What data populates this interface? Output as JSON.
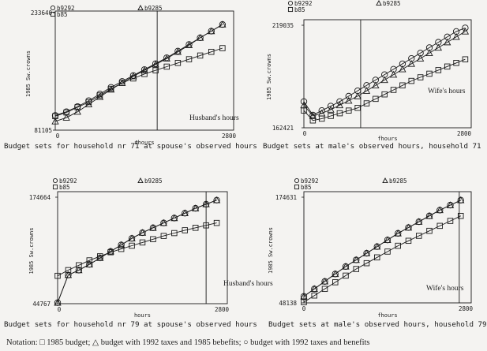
{
  "legend": {
    "b9292": "b9292",
    "b85": "b85",
    "b9285": "b9285"
  },
  "notation": "Notation: □ 1985 budget; △ budget with 1992 taxes and 1985 bebefits; ○ budget with 1992 taxes and benefits",
  "colors": {
    "ink": "#1a1a1a",
    "background": "#f4f3f1"
  },
  "chart_data": [
    {
      "type": "line",
      "caption": "Budget sets for household nr 71 at spouse's observed hours",
      "annotation": "Husband's hours",
      "ylabel": "1985 Sw.crowns",
      "xlabel": "#hours",
      "ylim": [
        81105,
        233640
      ],
      "xlim": [
        0,
        2800
      ],
      "yticks": [
        "233640",
        "81105"
      ],
      "xticks": [
        "0",
        "2800"
      ],
      "observed_hours": 1600,
      "x": [
        0,
        175,
        350,
        525,
        700,
        875,
        1050,
        1225,
        1400,
        1575,
        1750,
        1925,
        2100,
        2275,
        2450,
        2625
      ],
      "series": [
        {
          "name": "b85",
          "marker": "square",
          "values": [
            100000,
            105000,
            112000,
            119000,
            128000,
            137000,
            145000,
            151000,
            157000,
            162000,
            167000,
            172000,
            177000,
            182000,
            187000,
            192000
          ]
        },
        {
          "name": "b9285",
          "marker": "triangle",
          "values": [
            93000,
            98000,
            106000,
            116000,
            126000,
            136000,
            145000,
            154000,
            162000,
            170000,
            178000,
            187000,
            196000,
            206000,
            215000,
            224000
          ]
        },
        {
          "name": "b9292",
          "marker": "circle",
          "values": [
            101000,
            106000,
            113000,
            121000,
            130000,
            139000,
            147000,
            155000,
            163000,
            171000,
            179000,
            188000,
            197000,
            206000,
            215000,
            224000
          ]
        }
      ]
    },
    {
      "type": "line",
      "caption": "Budget sets at male's observed hours, household 71",
      "annotation": "Wife's hours",
      "ylabel": "1985 Sw.crowns",
      "xlabel": "fhours",
      "ylim": [
        162421,
        219035
      ],
      "xlim": [
        0,
        2800
      ],
      "yticks": [
        "219035",
        "162421"
      ],
      "xticks": [
        "0",
        "2800"
      ],
      "observed_hours": 950,
      "x": [
        0,
        150,
        300,
        450,
        600,
        750,
        900,
        1050,
        1200,
        1350,
        1500,
        1650,
        1800,
        1950,
        2100,
        2250,
        2400,
        2550,
        2700
      ],
      "series": [
        {
          "name": "b85",
          "marker": "square",
          "values": [
            172000,
            166500,
            167500,
            169000,
            170500,
            172000,
            173500,
            176000,
            178500,
            181000,
            183500,
            186000,
            188500,
            190500,
            192500,
            194500,
            196500,
            198500,
            200500
          ]
        },
        {
          "name": "b9285",
          "marker": "triangle",
          "values": [
            175000,
            169000,
            170500,
            172500,
            175000,
            177500,
            180000,
            183000,
            186000,
            189000,
            192000,
            195000,
            198000,
            201000,
            204000,
            207000,
            210000,
            213000,
            216000
          ]
        },
        {
          "name": "b9292",
          "marker": "circle",
          "values": [
            177000,
            169500,
            172000,
            174500,
            177000,
            180000,
            183000,
            186000,
            189000,
            192000,
            195000,
            198000,
            201000,
            204000,
            207000,
            210000,
            213000,
            216000,
            218000
          ]
        }
      ]
    },
    {
      "type": "line",
      "caption": "Budget sets for household nr 79 at spouse's observed hours",
      "annotation": "Husband's hours",
      "ylabel": "1985 Sw.crowns",
      "xlabel": "hours",
      "ylim": [
        44767,
        174664
      ],
      "xlim": [
        0,
        2800
      ],
      "yticks": [
        "174664",
        "44767"
      ],
      "xticks": [
        "0",
        "2800"
      ],
      "observed_hours": 2450,
      "x": [
        0,
        175,
        350,
        525,
        700,
        875,
        1050,
        1225,
        1400,
        1575,
        1750,
        1925,
        2100,
        2275,
        2450,
        2625
      ],
      "series": [
        {
          "name": "b85",
          "marker": "square",
          "values": [
            79000,
            86000,
            92000,
            98000,
            103000,
            108000,
            112000,
            116000,
            120000,
            124000,
            128000,
            131500,
            135000,
            138000,
            141000,
            144000
          ]
        },
        {
          "name": "b9285",
          "marker": "triangle",
          "values": [
            46000,
            80000,
            86000,
            93000,
            101000,
            109000,
            117000,
            125000,
            132000,
            138000,
            144000,
            150000,
            156000,
            162000,
            167000,
            172000
          ]
        },
        {
          "name": "b9292",
          "marker": "circle",
          "values": [
            46000,
            80000,
            86000,
            93000,
            101000,
            109000,
            117000,
            125000,
            132000,
            138000,
            144000,
            150000,
            156000,
            162000,
            167000,
            172000
          ]
        }
      ]
    },
    {
      "type": "line",
      "caption": "Budget sets at male's observed hours, household 79",
      "annotation": "Wife's hours",
      "ylabel": "1985 Sw.crowns",
      "xlabel": "fhours",
      "ylim": [
        48138,
        174631
      ],
      "xlim": [
        0,
        2800
      ],
      "yticks": [
        "174631",
        "48138"
      ],
      "xticks": [
        "0",
        "2800"
      ],
      "observed_hours": 2600,
      "x": [
        0,
        175,
        350,
        525,
        700,
        875,
        1050,
        1225,
        1400,
        1575,
        1750,
        1925,
        2100,
        2275,
        2450,
        2625
      ],
      "series": [
        {
          "name": "b85",
          "marker": "square",
          "values": [
            49000,
            57000,
            65000,
            73000,
            81000,
            89000,
            96000,
            103000,
            110000,
            117000,
            123000,
            129000,
            135000,
            141000,
            147000,
            153000
          ]
        },
        {
          "name": "b9285",
          "marker": "triangle",
          "values": [
            56000,
            65000,
            74000,
            83000,
            92000,
            100000,
            108000,
            116000,
            124000,
            132000,
            139000,
            146000,
            153000,
            160000,
            166000,
            172000
          ]
        },
        {
          "name": "b9292",
          "marker": "circle",
          "values": [
            56000,
            65000,
            74000,
            83000,
            92000,
            100000,
            108000,
            116000,
            124000,
            132000,
            139000,
            146000,
            153000,
            160000,
            166000,
            172000
          ]
        }
      ]
    }
  ]
}
